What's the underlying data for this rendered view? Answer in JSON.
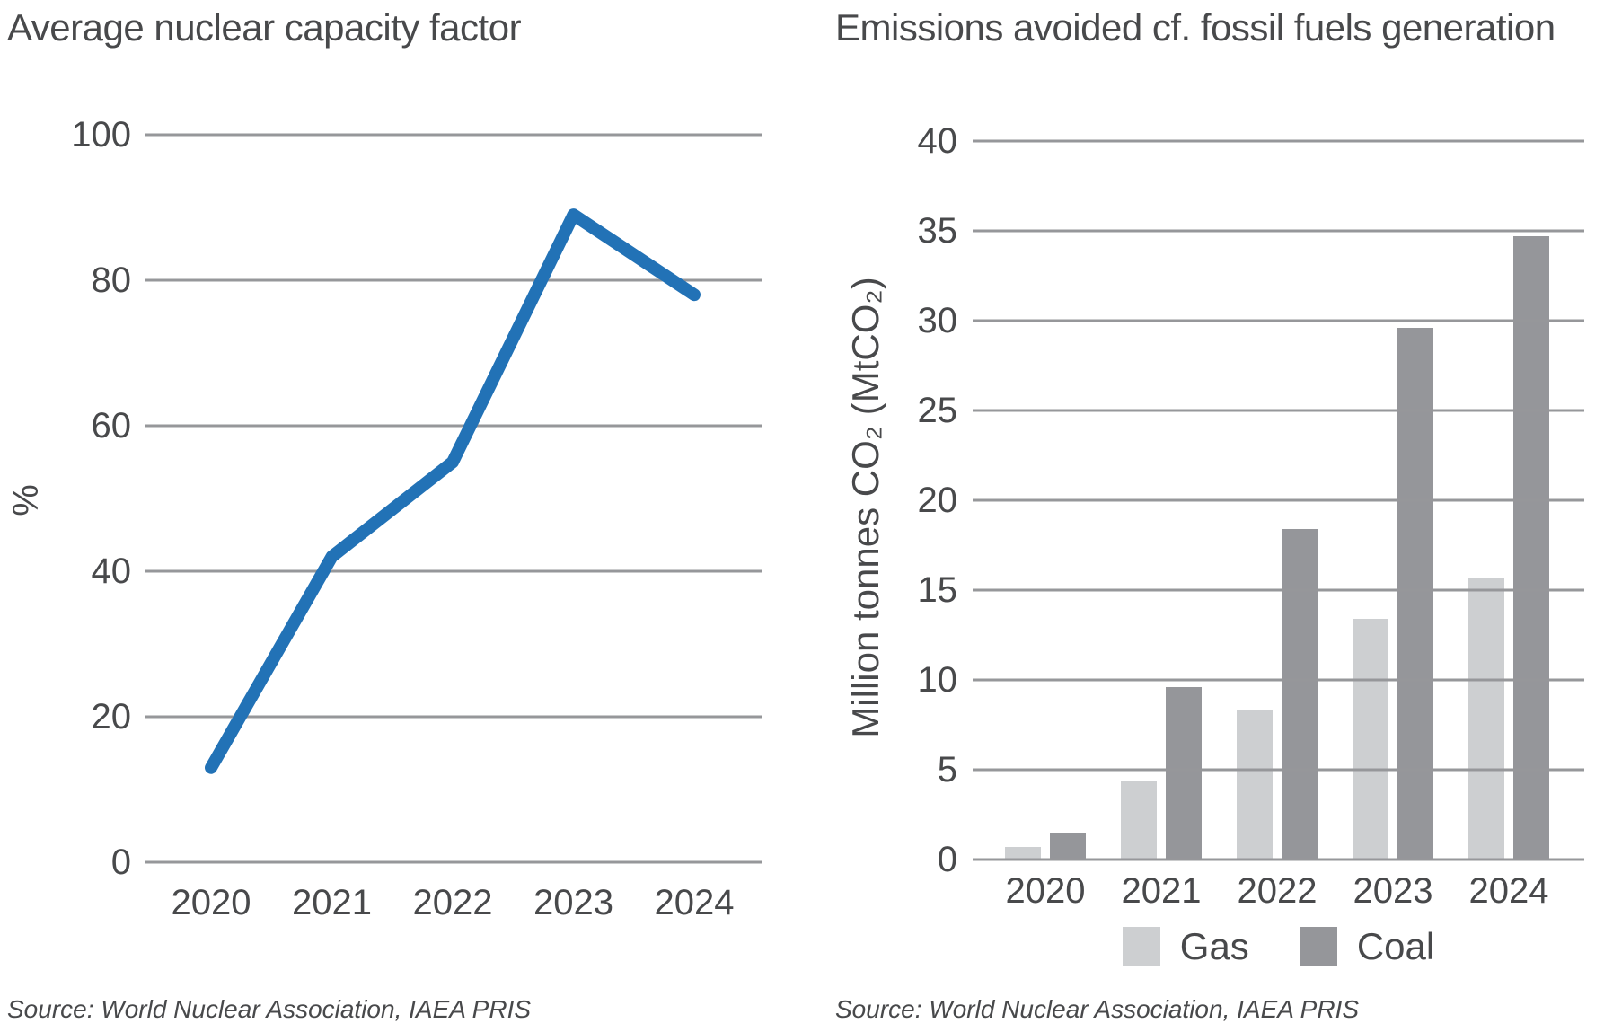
{
  "style": {
    "background": "#ffffff",
    "text_color": "#48494b",
    "grid_color": "#96979a"
  },
  "chart_data": [
    {
      "type": "line",
      "title": "Average nuclear capacity factor",
      "categories": [
        "2020",
        "2021",
        "2022",
        "2023",
        "2024"
      ],
      "values": [
        13,
        42,
        55,
        89,
        78
      ],
      "xlabel": "",
      "ylabel": "%",
      "ylim": [
        0,
        100
      ],
      "yticks": [
        0,
        20,
        40,
        60,
        80,
        100
      ],
      "grid": true,
      "legend_position": "none",
      "line_color": "#2272b6",
      "source": "Source: World Nuclear Association, IAEA PRIS"
    },
    {
      "type": "bar",
      "title": "Emissions avoided cf. fossil fuels generation",
      "categories": [
        "2020",
        "2021",
        "2022",
        "2023",
        "2024"
      ],
      "series": [
        {
          "name": "Gas",
          "color": "#cdcfd1",
          "values": [
            0.7,
            4.4,
            8.3,
            13.4,
            15.7
          ]
        },
        {
          "name": "Coal",
          "color": "#95969a",
          "values": [
            1.5,
            9.6,
            18.4,
            29.6,
            34.7
          ]
        }
      ],
      "xlabel": "",
      "ylabel": "Million tonnes CO₂ (MtCO₂)",
      "ylim": [
        0,
        40
      ],
      "yticks": [
        0,
        5,
        10,
        15,
        20,
        25,
        30,
        35,
        40
      ],
      "grid": true,
      "legend_position": "bottom",
      "source": "Source: World Nuclear Association, IAEA PRIS"
    }
  ]
}
